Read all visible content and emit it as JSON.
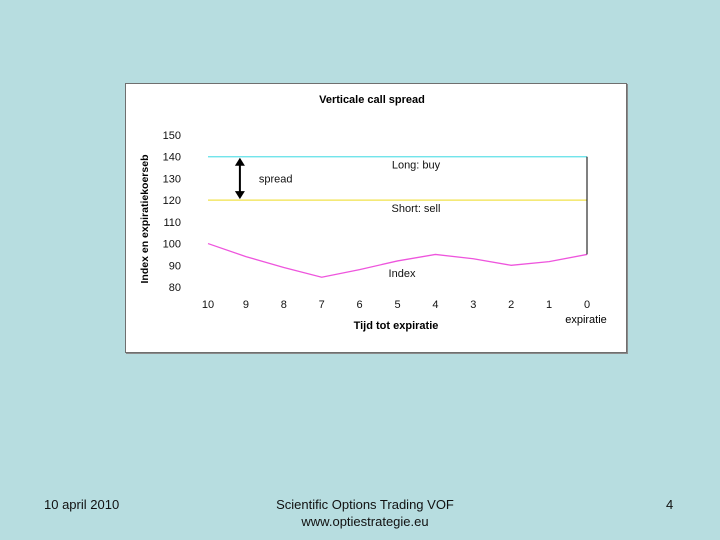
{
  "chart_data": {
    "type": "line",
    "title": "Verticale call spread",
    "xlabel": "Tijd tot expiratie",
    "ylabel": "Index en expiratiekoerseb",
    "categories": [
      "10",
      "9",
      "8",
      "7",
      "6",
      "5",
      "4",
      "3",
      "2",
      "1",
      "0"
    ],
    "x_end_label": "expiratie",
    "ylim": [
      80,
      150
    ],
    "yticks": [
      150,
      140,
      130,
      120,
      110,
      100,
      90,
      80
    ],
    "series": [
      {
        "name": "Long: buy",
        "color": "#5fe0e8",
        "values": [
          140,
          140,
          140,
          140,
          140,
          140,
          140,
          140,
          140,
          140,
          140
        ]
      },
      {
        "name": "Short: sell",
        "color": "#f0e24a",
        "values": [
          120,
          120,
          120,
          120,
          120,
          120,
          120,
          120,
          120,
          120,
          120
        ]
      },
      {
        "name": "Index",
        "color": "#ee55dd",
        "values": [
          100,
          94,
          89,
          84.5,
          88,
          92,
          95,
          93,
          90,
          91.7,
          95
        ]
      }
    ],
    "annotation": {
      "label": "spread",
      "from": 140,
      "to": 120,
      "at_category": "9"
    }
  },
  "footer": {
    "date": "10 april 2010",
    "company": "Scientific Options Trading VOF",
    "website": "www.optiestrategie.eu",
    "page_number": "4"
  }
}
